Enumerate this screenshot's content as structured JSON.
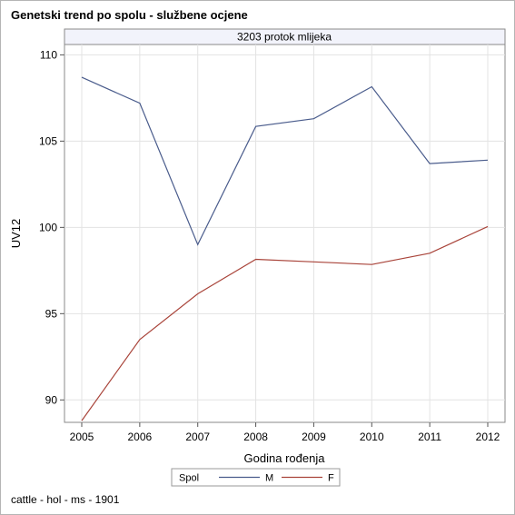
{
  "title": "Genetski trend po spolu - službene ocjene",
  "footnote": "cattle - hol - ms - 1901",
  "chart_data": {
    "type": "line",
    "panel_label": "3203 protok mlijeka",
    "xlabel": "Godina rođenja",
    "ylabel": "UV12",
    "x": [
      2005,
      2006,
      2007,
      2008,
      2009,
      2010,
      2011,
      2012
    ],
    "x_tick_labels": [
      "2005",
      "2006",
      "2007",
      "2008",
      "2009",
      "2010",
      "2011",
      "2012"
    ],
    "y_ticks": [
      90,
      95,
      100,
      105,
      110
    ],
    "y_tick_labels": [
      "90",
      "95",
      "100",
      "105",
      "110"
    ],
    "ylim": [
      88.7,
      110.6
    ],
    "grid": true,
    "legend_title": "Spol",
    "legend_position": "bottom",
    "series": [
      {
        "name": "M",
        "color": "#4a5c8c",
        "values": [
          108.7,
          107.2,
          99.0,
          105.85,
          106.3,
          108.15,
          103.7,
          103.9
        ]
      },
      {
        "name": "F",
        "color": "#a9443a",
        "values": [
          88.8,
          93.5,
          96.15,
          98.15,
          98.0,
          97.85,
          98.5,
          100.05
        ]
      }
    ]
  }
}
